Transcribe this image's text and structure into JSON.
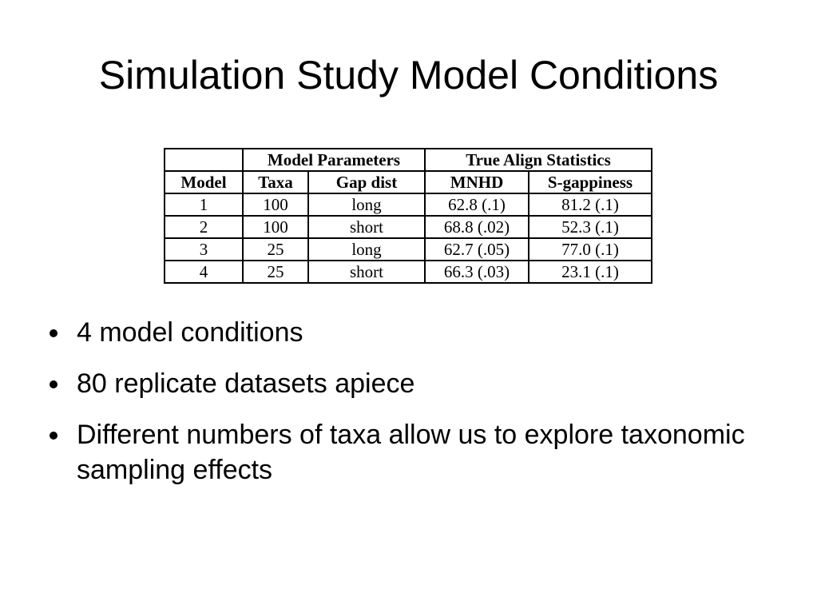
{
  "slide": {
    "title": "Simulation Study Model Conditions"
  },
  "table": {
    "group_headers": [
      "",
      "Model Parameters",
      "True Align Statistics"
    ],
    "column_headers": [
      "Model",
      "Taxa",
      "Gap dist",
      "MNHD",
      "S-gappiness"
    ],
    "rows": [
      [
        "1",
        "100",
        "long",
        "62.8  (.1)",
        "81.2  (.1)"
      ],
      [
        "2",
        "100",
        "short",
        "68.8  (.02)",
        "52.3  (.1)"
      ],
      [
        "3",
        "25",
        "long",
        "62.7  (.05)",
        "77.0  (.1)"
      ],
      [
        "4",
        "25",
        "short",
        "66.3  (.03)",
        "23.1  (.1)"
      ]
    ]
  },
  "bullets": [
    "4 model conditions",
    "80 replicate datasets apiece",
    "Different numbers of taxa allow us to explore taxonomic sampling effects"
  ]
}
